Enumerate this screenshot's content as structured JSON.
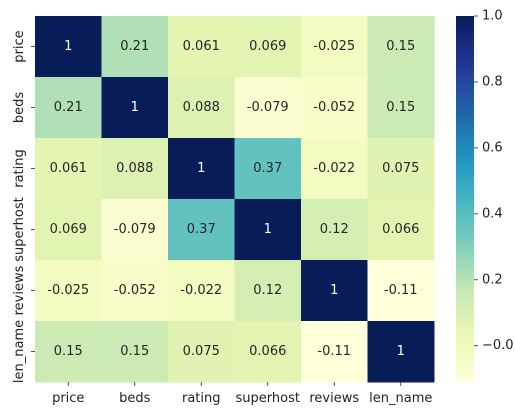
{
  "chart_data": {
    "type": "heatmap",
    "title": "",
    "xlabel": "",
    "ylabel": "",
    "x_categories": [
      "price",
      "beds",
      "rating",
      "superhost",
      "reviews",
      "len_name"
    ],
    "y_categories": [
      "price",
      "beds",
      "rating",
      "superhost",
      "reviews",
      "len_name"
    ],
    "values": [
      [
        1,
        0.21,
        0.061,
        0.069,
        -0.025,
        0.15
      ],
      [
        0.21,
        1,
        0.088,
        -0.079,
        -0.052,
        0.15
      ],
      [
        0.061,
        0.088,
        1,
        0.37,
        -0.022,
        0.075
      ],
      [
        0.069,
        -0.079,
        0.37,
        1,
        0.12,
        0.066
      ],
      [
        -0.025,
        -0.052,
        -0.022,
        0.12,
        1,
        -0.11
      ],
      [
        0.15,
        0.15,
        0.075,
        0.066,
        -0.11,
        1
      ]
    ],
    "labels": [
      [
        "1",
        "0.21",
        "0.061",
        "0.069",
        "-0.025",
        "0.15"
      ],
      [
        "0.21",
        "1",
        "0.088",
        "-0.079",
        "-0.052",
        "0.15"
      ],
      [
        "0.061",
        "0.088",
        "1",
        "0.37",
        "-0.022",
        "0.075"
      ],
      [
        "0.069",
        "-0.079",
        "0.37",
        "1",
        "0.12",
        "0.066"
      ],
      [
        "-0.025",
        "-0.052",
        "-0.022",
        "0.12",
        "1",
        "-0.11"
      ],
      [
        "0.15",
        "0.15",
        "0.075",
        "0.066",
        "-0.11",
        "1"
      ]
    ],
    "vmin": -0.11,
    "vmax": 1,
    "colormap": "YlGnBu",
    "colorbar_ticks": [
      -0.0,
      0.2,
      0.4,
      0.6,
      0.8,
      1.0
    ],
    "colorbar_tick_labels": [
      "−0.0",
      "0.2",
      "0.4",
      "0.6",
      "0.8",
      "1.0"
    ],
    "grid": false,
    "legend": "colorbar-right"
  }
}
